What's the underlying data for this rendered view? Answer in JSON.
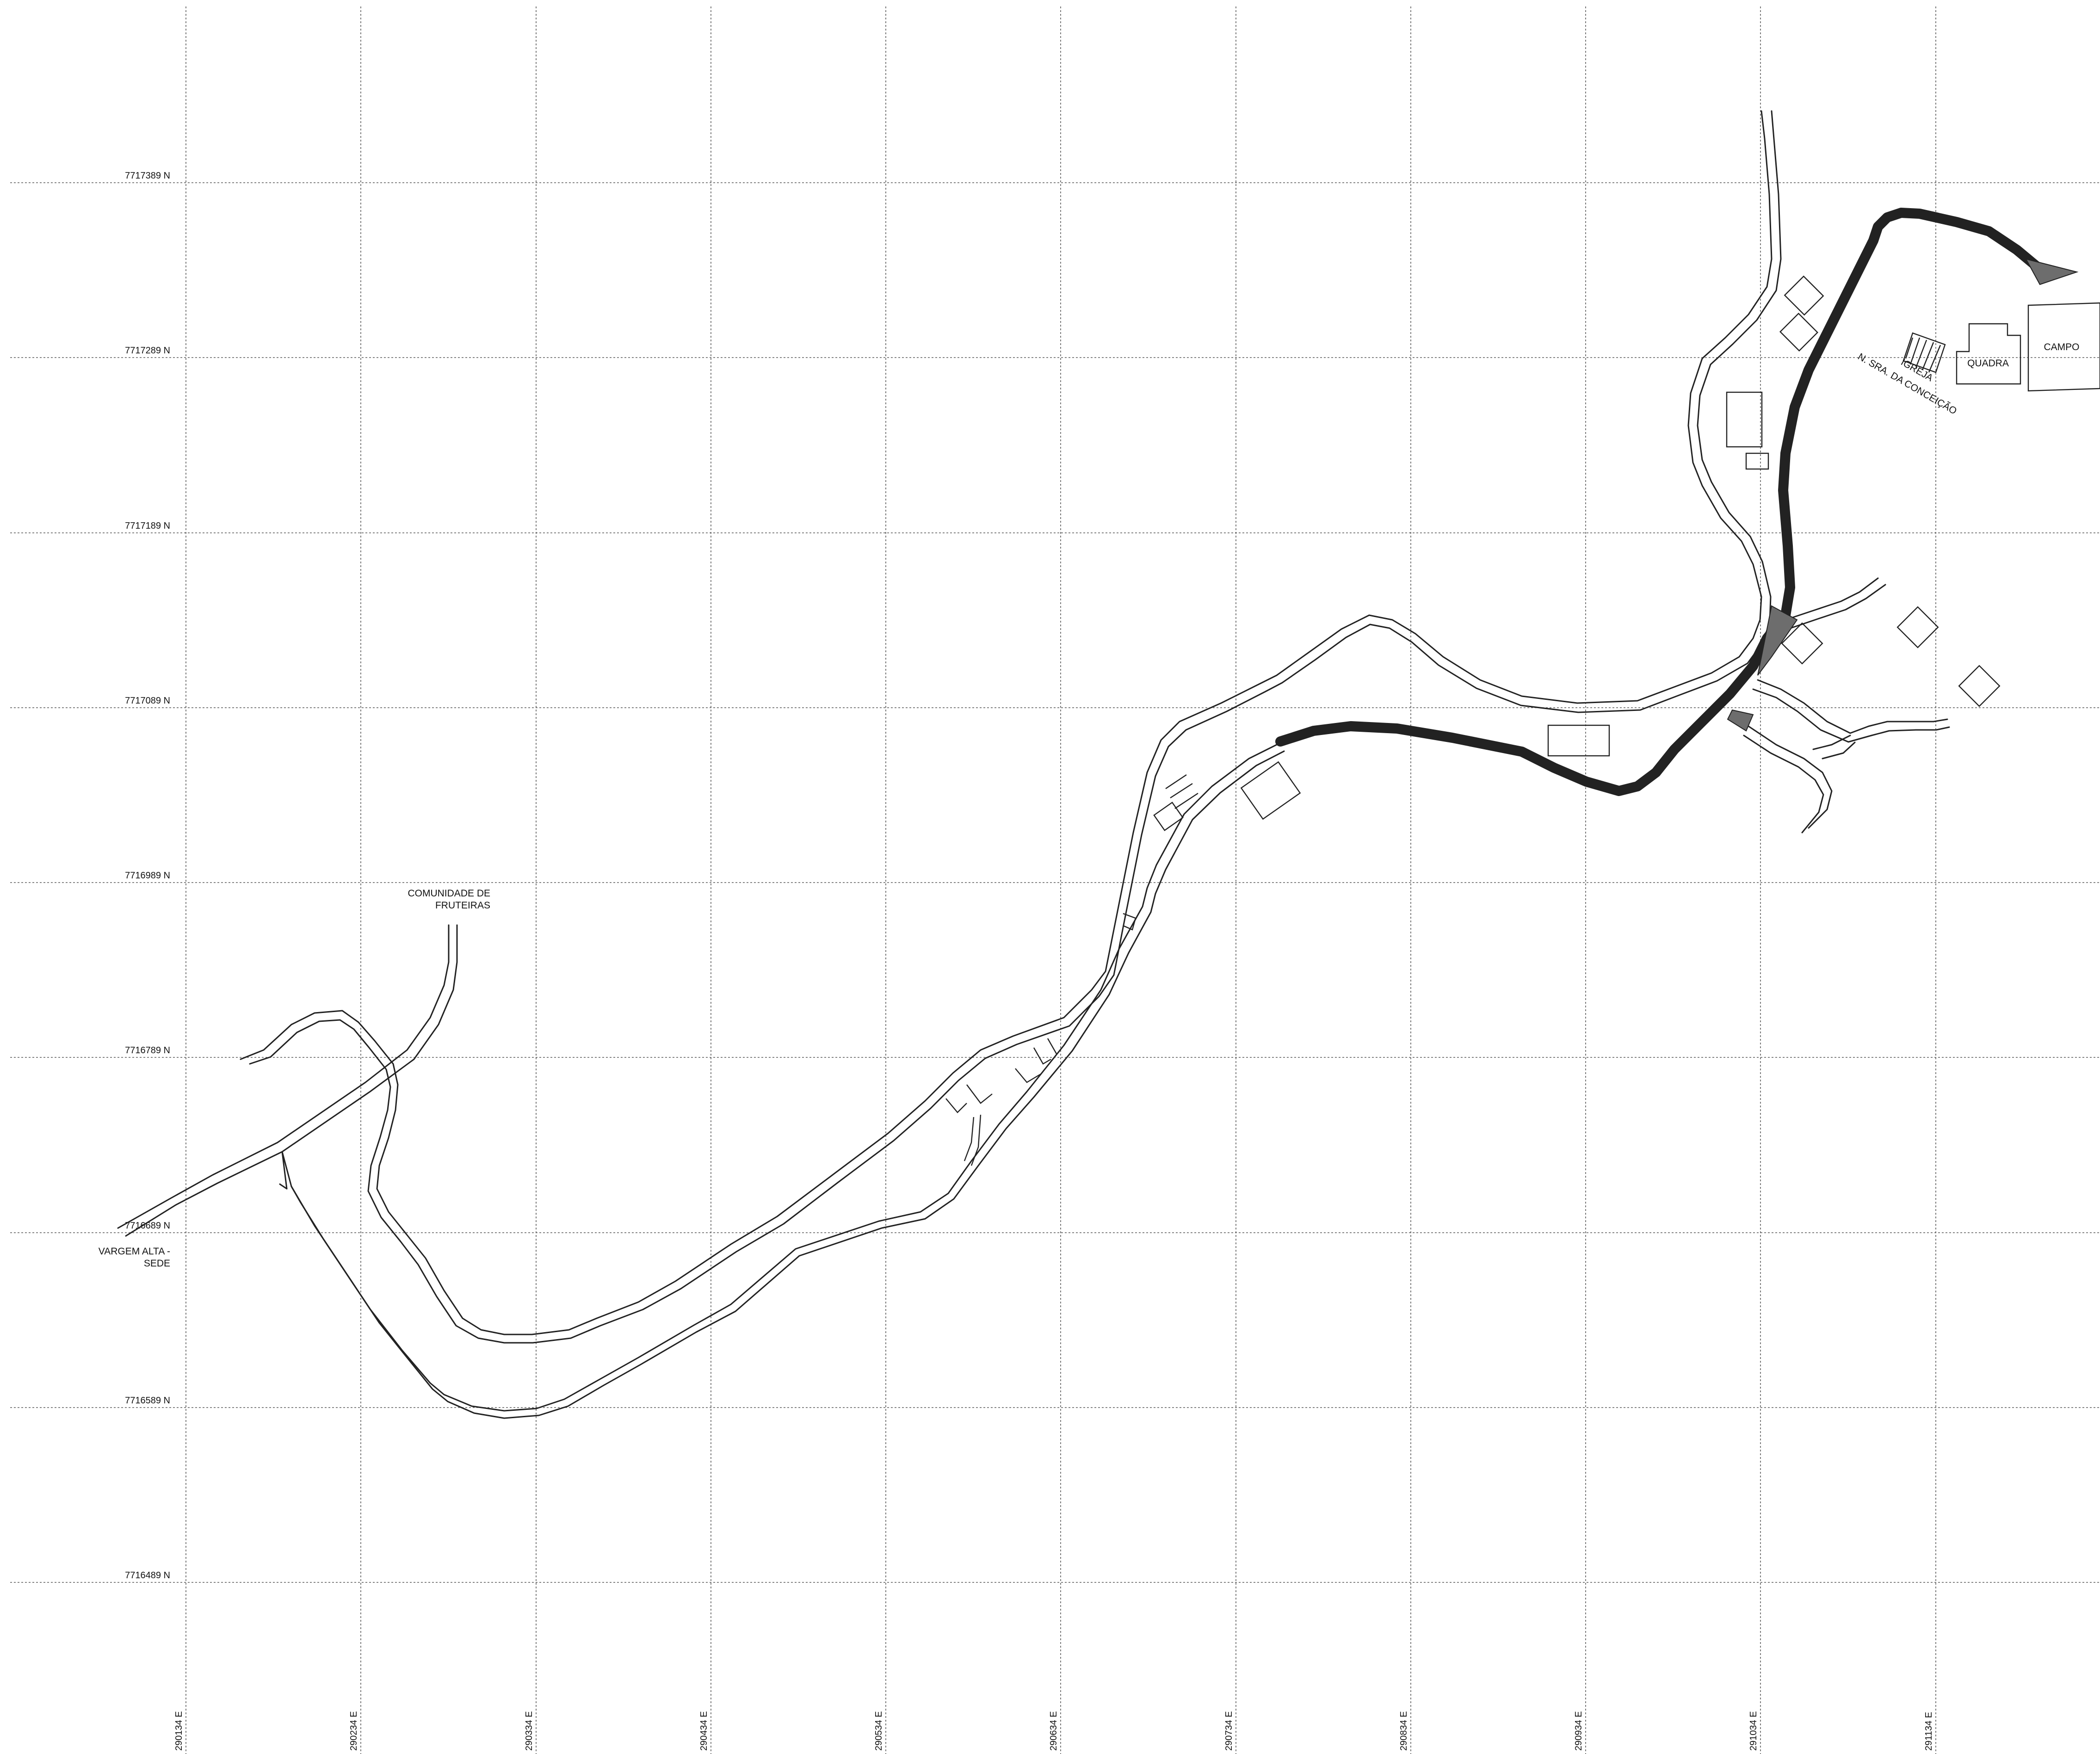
{
  "grid": {
    "northings": [
      "7717389 N",
      "7717289 N",
      "7717189 N",
      "7717089 N",
      "7716989 N",
      "7716789 N",
      "7716689 N",
      "7716589 N",
      "7716489 N"
    ],
    "eastings": [
      "290134 E",
      "290234 E",
      "290334 E",
      "290434 E",
      "290534 E",
      "290634 E",
      "290734 E",
      "290834 E",
      "290934 E",
      "291034 E",
      "291134 E"
    ]
  },
  "labels": {
    "comunidade_line1": "COMUNIDADE DE",
    "comunidade_line2": "FRUTEIRAS",
    "vargem_line1": "VARGEM ALTA -",
    "vargem_line2": "SEDE",
    "igreja": "IGREJA",
    "igreja_name": "N. SRA. DA CONCEIÇÃO",
    "quadra": "QUADRA",
    "campo": "CAMPO"
  },
  "colors": {
    "paved_road_fill": "#6d6d6d",
    "line": "#222222",
    "grid": "#5a5a5a"
  }
}
